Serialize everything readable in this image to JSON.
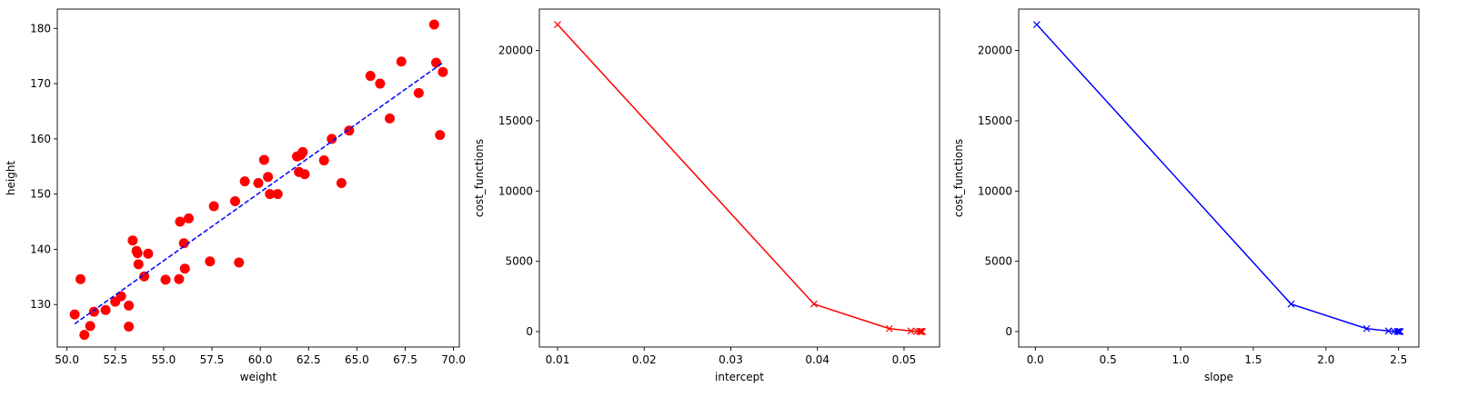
{
  "chart_data": [
    {
      "type": "scatter",
      "xlabel": "weight",
      "ylabel": "height",
      "xlim": [
        49.5,
        70.3
      ],
      "ylim": [
        122.3,
        183.5
      ],
      "xticks": [
        "50.0",
        "52.5",
        "55.0",
        "57.5",
        "60.0",
        "62.5",
        "65.0",
        "67.5",
        "70.0"
      ],
      "yticks": [
        "130",
        "140",
        "150",
        "160",
        "170",
        "180"
      ],
      "grid": false,
      "series": [
        {
          "kind": "points",
          "color": "#ff0000",
          "marker": "circle",
          "points": [
            [
              50.4,
              128.2
            ],
            [
              50.7,
              134.6
            ],
            [
              50.9,
              124.5
            ],
            [
              51.2,
              126.1
            ],
            [
              51.4,
              128.7
            ],
            [
              52.0,
              129.0
            ],
            [
              52.5,
              130.5
            ],
            [
              52.8,
              131.5
            ],
            [
              53.2,
              129.8
            ],
            [
              53.2,
              126.0
            ],
            [
              53.4,
              141.6
            ],
            [
              53.6,
              139.7
            ],
            [
              53.65,
              139.3
            ],
            [
              53.7,
              137.3
            ],
            [
              54.0,
              135.1
            ],
            [
              54.2,
              139.2
            ],
            [
              55.1,
              134.5
            ],
            [
              55.8,
              134.6
            ],
            [
              55.85,
              145.0
            ],
            [
              56.05,
              141.1
            ],
            [
              56.1,
              136.5
            ],
            [
              56.3,
              145.6
            ],
            [
              57.4,
              137.8
            ],
            [
              57.6,
              147.8
            ],
            [
              58.7,
              148.7
            ],
            [
              58.9,
              137.6
            ],
            [
              59.2,
              152.3
            ],
            [
              59.9,
              152.0
            ],
            [
              60.2,
              156.2
            ],
            [
              60.4,
              153.1
            ],
            [
              60.5,
              150.0
            ],
            [
              60.9,
              150.0
            ],
            [
              61.9,
              156.8
            ],
            [
              62.0,
              154.0
            ],
            [
              62.1,
              157.1
            ],
            [
              62.2,
              157.6
            ],
            [
              62.3,
              153.6
            ],
            [
              63.3,
              156.1
            ],
            [
              63.7,
              160.0
            ],
            [
              64.2,
              152.0
            ],
            [
              64.6,
              161.5
            ],
            [
              65.7,
              171.4
            ],
            [
              66.2,
              170.0
            ],
            [
              66.7,
              163.7
            ],
            [
              67.3,
              174.0
            ],
            [
              68.2,
              168.3
            ],
            [
              69.0,
              180.7
            ],
            [
              69.1,
              173.8
            ],
            [
              69.3,
              160.7
            ],
            [
              69.45,
              172.1
            ]
          ]
        },
        {
          "kind": "line",
          "color": "#0000ff",
          "style": "dashed",
          "points": [
            [
              50.4,
              126.5
            ],
            [
              69.45,
              173.8
            ]
          ]
        }
      ]
    },
    {
      "type": "line",
      "xlabel": "intercept",
      "ylabel": "cost_functions",
      "xlim": [
        0.0079,
        0.0541
      ],
      "ylim": [
        -1100,
        22950
      ],
      "xticks": [
        "0.01",
        "0.02",
        "0.03",
        "0.04",
        "0.05"
      ],
      "yticks": [
        "0",
        "5000",
        "10000",
        "15000",
        "20000"
      ],
      "grid": false,
      "series": [
        {
          "kind": "line",
          "color": "#ff0000",
          "marker": "x",
          "points": [
            [
              0.01,
              21850
            ],
            [
              0.0396,
              1960
            ],
            [
              0.0483,
              210
            ],
            [
              0.0508,
              45
            ],
            [
              0.0515,
              15
            ],
            [
              0.0518,
              8
            ],
            [
              0.0519,
              6
            ],
            [
              0.052,
              5
            ],
            [
              0.0521,
              4
            ],
            [
              0.0521,
              4
            ]
          ]
        }
      ]
    },
    {
      "type": "line",
      "xlabel": "slope",
      "ylabel": "cost_functions",
      "xlim": [
        -0.1145,
        2.6395
      ],
      "ylim": [
        -1100,
        22950
      ],
      "xticks": [
        "0.0",
        "0.5",
        "1.0",
        "1.5",
        "2.0",
        "2.5"
      ],
      "yticks": [
        "0",
        "5000",
        "10000",
        "15000",
        "20000"
      ],
      "grid": false,
      "series": [
        {
          "kind": "line",
          "color": "#0000ff",
          "marker": "x",
          "points": [
            [
              0.01,
              21850
            ],
            [
              1.76,
              1960
            ],
            [
              2.28,
              210
            ],
            [
              2.43,
              45
            ],
            [
              2.47,
              15
            ],
            [
              2.49,
              8
            ],
            [
              2.5,
              6
            ],
            [
              2.505,
              5
            ],
            [
              2.51,
              4
            ],
            [
              2.51,
              4
            ]
          ]
        }
      ]
    }
  ]
}
